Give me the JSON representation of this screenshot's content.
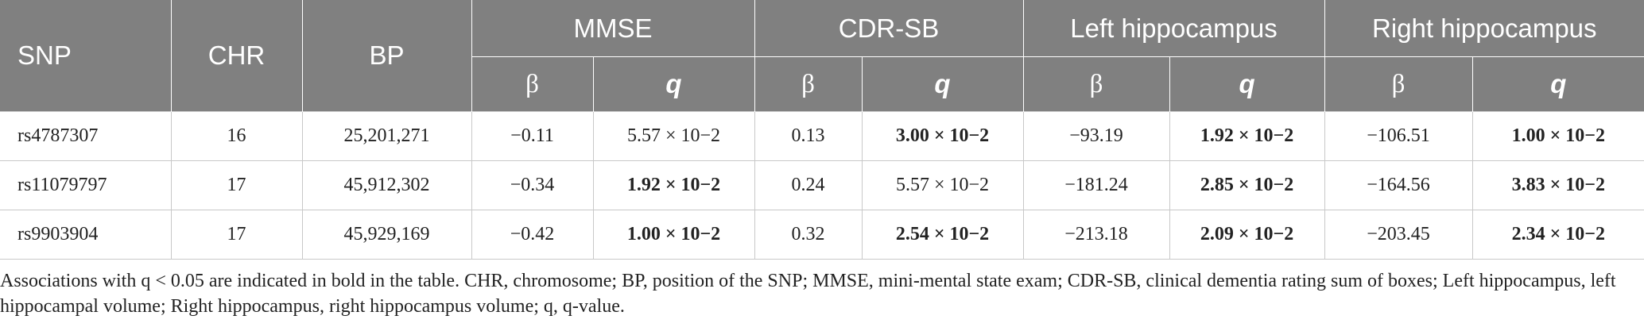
{
  "table": {
    "headers": {
      "snp": "SNP",
      "chr": "CHR",
      "bp": "BP",
      "mmse": "MMSE",
      "cdrsb": "CDR-SB",
      "left_hippo": "Left hippocampus",
      "right_hippo": "Right hippocampus"
    },
    "sub": {
      "beta": "β",
      "q": "q"
    },
    "rows": [
      {
        "snp": "rs4787307",
        "chr": "16",
        "bp": "25,201,271",
        "cells": [
          {
            "text": "−0.11",
            "bold": false
          },
          {
            "text": "5.57 × 10−2",
            "bold": false
          },
          {
            "text": "0.13",
            "bold": false
          },
          {
            "text": "3.00 × 10−2",
            "bold": true
          },
          {
            "text": "−93.19",
            "bold": false
          },
          {
            "text": "1.92 × 10−2",
            "bold": true
          },
          {
            "text": "−106.51",
            "bold": false
          },
          {
            "text": "1.00 × 10−2",
            "bold": true
          }
        ]
      },
      {
        "snp": "rs11079797",
        "chr": "17",
        "bp": "45,912,302",
        "cells": [
          {
            "text": "−0.34",
            "bold": false
          },
          {
            "text": "1.92 × 10−2",
            "bold": true
          },
          {
            "text": "0.24",
            "bold": false
          },
          {
            "text": "5.57 × 10−2",
            "bold": false
          },
          {
            "text": "−181.24",
            "bold": false
          },
          {
            "text": "2.85 × 10−2",
            "bold": true
          },
          {
            "text": "−164.56",
            "bold": false
          },
          {
            "text": "3.83 × 10−2",
            "bold": true
          }
        ]
      },
      {
        "snp": "rs9903904",
        "chr": "17",
        "bp": "45,929,169",
        "cells": [
          {
            "text": "−0.42",
            "bold": false
          },
          {
            "text": "1.00 × 10−2",
            "bold": true
          },
          {
            "text": "0.32",
            "bold": false
          },
          {
            "text": "2.54 × 10−2",
            "bold": true
          },
          {
            "text": "−213.18",
            "bold": false
          },
          {
            "text": "2.09 × 10−2",
            "bold": true
          },
          {
            "text": "−203.45",
            "bold": false
          },
          {
            "text": "2.34 × 10−2",
            "bold": true
          }
        ]
      }
    ]
  },
  "footnote": "Associations with q < 0.05 are indicated in bold in the table. CHR, chromosome; BP, position of the SNP; MMSE, mini-mental state exam; CDR-SB, clinical dementia rating sum of boxes; Left hippocampus, left hippocampal volume; Right hippocampus, right hippocampus volume; q, q-value."
}
